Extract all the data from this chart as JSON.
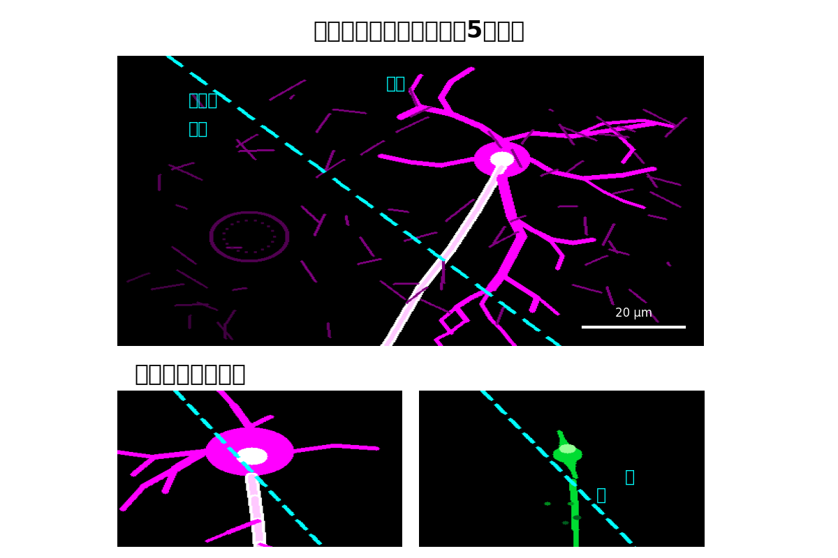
{
  "title_top": "バレル野神経細胞（生後5日齢）",
  "title_bottom": "ゴルジ体の拡大図",
  "label_barrel": "バレル",
  "label_inner": "内側",
  "label_outer": "外側",
  "label_outer_small": "外",
  "label_inner_small": "内",
  "scale_bar_text": "20 μm",
  "bg_color": "#000000",
  "neuron_color_rgb": [
    255,
    0,
    255
  ],
  "white_rgb": [
    255,
    255,
    255
  ],
  "cyan_color": "#00FFFF",
  "cyan_rgb": [
    0,
    255,
    255
  ],
  "green_rgb": [
    0,
    220,
    50
  ],
  "title_color": "#000000",
  "fig_bg": "#FFFFFF",
  "font_size_title": 24,
  "font_size_label": 15,
  "font_size_scale": 12
}
